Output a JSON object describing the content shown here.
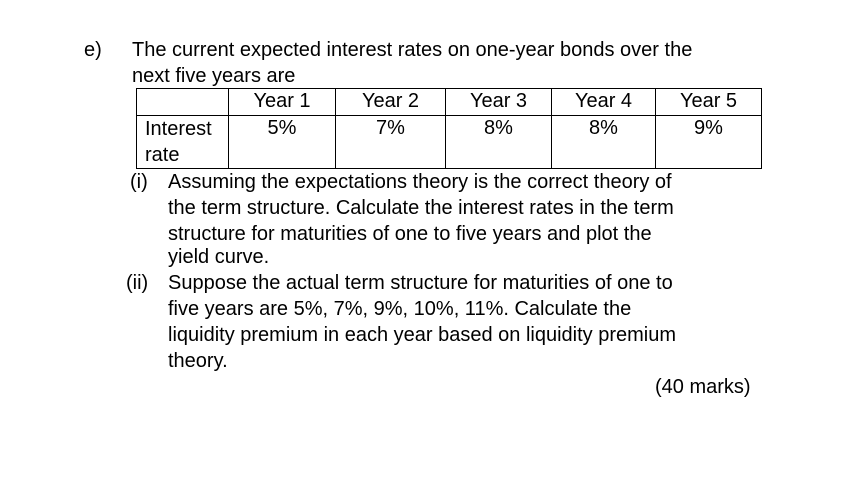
{
  "question": {
    "label": "e)",
    "intro_line1": "The current expected interest rates on one-year bonds over the",
    "intro_line2": "next five years are"
  },
  "table": {
    "headers": [
      "",
      "Year 1",
      "Year 2",
      "Year 3",
      "Year 4",
      "Year 5"
    ],
    "row_label_line1": "Interest",
    "row_label_line2": "rate",
    "values": [
      "5%",
      "7%",
      "8%",
      "8%",
      "9%"
    ]
  },
  "subquestions": [
    {
      "number": "(i)",
      "lines": [
        "Assuming the expectations theory is the correct theory of",
        "the term structure. Calculate the interest rates in the term",
        "structure for maturities of one to five years and plot the",
        "yield curve."
      ]
    },
    {
      "number": "(ii)",
      "lines": [
        "Suppose the actual term structure for maturities of one to",
        "five years are 5%, 7%, 9%, 10%, 11%. Calculate the",
        "liquidity premium in each year based on liquidity premium",
        "theory."
      ]
    }
  ],
  "marks": "(40 marks)"
}
